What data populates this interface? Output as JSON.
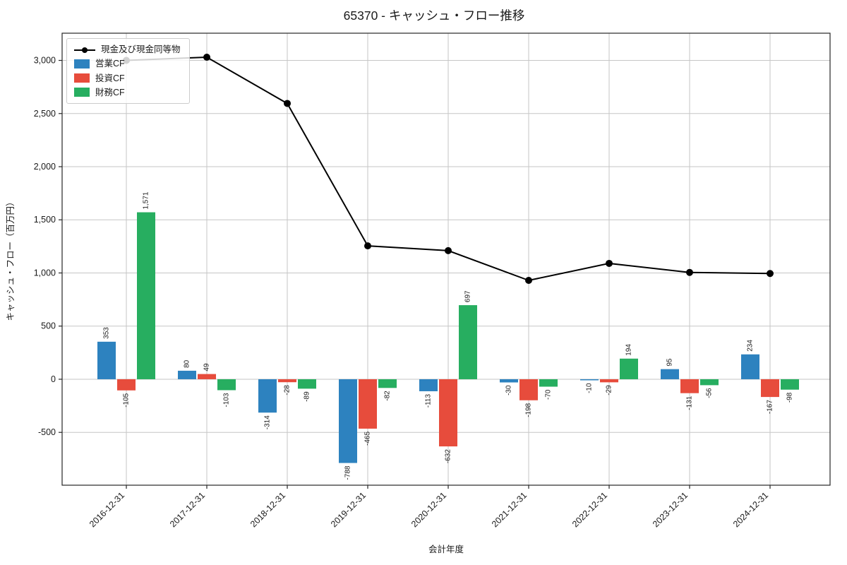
{
  "chart_data": {
    "type": "bar+line",
    "title": "65370 - キャッシュ・フロー推移",
    "xlabel": "会計年度",
    "ylabel": "キャッシュ・フロー（百万円）",
    "categories": [
      "2016-12-31",
      "2017-12-31",
      "2018-12-31",
      "2019-12-31",
      "2020-12-31",
      "2021-12-31",
      "2022-12-31",
      "2023-12-31",
      "2024-12-31"
    ],
    "series": [
      {
        "name": "営業CF",
        "type": "bar",
        "color": "#2d82bf",
        "values": [
          353,
          80,
          -314,
          -788,
          -113,
          -30,
          -10,
          95,
          234
        ],
        "labels": [
          "353",
          "80",
          "-314",
          "-788",
          "-113",
          "-30",
          "-10",
          "95",
          "234"
        ]
      },
      {
        "name": "投資CF",
        "type": "bar",
        "color": "#e74c3c",
        "values": [
          -105,
          49,
          -28,
          -465,
          -632,
          -198,
          -29,
          -131,
          -167
        ],
        "labels": [
          "-105",
          "49",
          "-28",
          "-465",
          "-632",
          "-198",
          "-29",
          "-131",
          "-167"
        ]
      },
      {
        "name": "財務CF",
        "type": "bar",
        "color": "#27ae60",
        "values": [
          1571,
          -103,
          -89,
          -82,
          697,
          -70,
          194,
          -56,
          -98
        ],
        "labels": [
          "1,571",
          "-103",
          "-89",
          "-82",
          "697",
          "-70",
          "194",
          "-56",
          "-98"
        ]
      }
    ],
    "line": {
      "name": "現金及び現金同等物",
      "color": "#000000",
      "values": [
        3000,
        3030,
        2595,
        1255,
        1210,
        930,
        1090,
        1005,
        995
      ],
      "values_estimated_from_pixels": true
    },
    "yticks": [
      3000,
      2500,
      2000,
      1500,
      1000,
      500,
      0,
      -500
    ],
    "ytick_labels": [
      "3,000",
      "2,500",
      "2,000",
      "1,500",
      "1,000",
      "500",
      "0",
      "-500"
    ],
    "ylim": [
      -997,
      3256
    ],
    "grid": true,
    "legend_position": "upper-left",
    "colors": {
      "grid": "#c6c6c6",
      "frame": "#262626",
      "text": "#1a1a1a",
      "line": "#000000",
      "operating_cf": "#2d82bf",
      "investing_cf": "#e74c3c",
      "financing_cf": "#27ae60"
    }
  }
}
